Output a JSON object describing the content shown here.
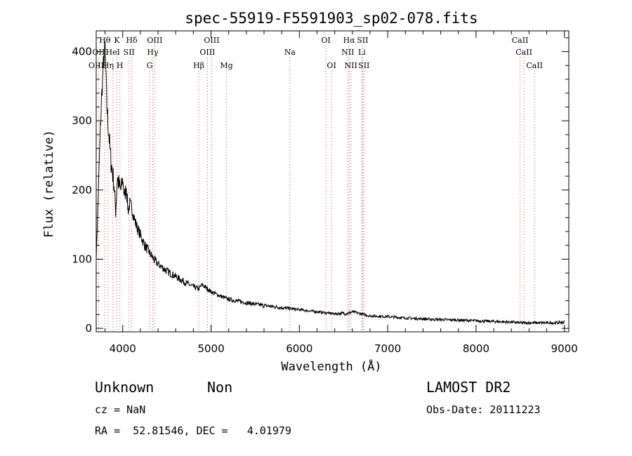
{
  "chart_data": {
    "type": "line",
    "title": "spec-55919-F5591903_sp02-078.fits",
    "xlabel": "Wavelength (Å)",
    "ylabel": "Flux (relative)",
    "xlim": [
      3700,
      9050
    ],
    "ylim": [
      -5,
      430
    ],
    "xticks": [
      4000,
      5000,
      6000,
      7000,
      8000,
      9000
    ],
    "yticks": [
      0,
      100,
      200,
      300,
      400
    ],
    "grid": false,
    "series": [
      {
        "values_x": [
          3700,
          3720,
          3740,
          3760,
          3780,
          3800,
          3815,
          3830,
          3845,
          3860,
          3880,
          3900,
          3920,
          3940,
          3960,
          3980,
          4000,
          4020,
          4040,
          4060,
          4080,
          4100,
          4150,
          4200,
          4250,
          4300,
          4350,
          4400,
          4450,
          4500,
          4600,
          4700,
          4800,
          4860,
          4900,
          5000,
          5100,
          5200,
          5400,
          5600,
          5800,
          6000,
          6200,
          6400,
          6563,
          6600,
          6700,
          6800,
          7000,
          7200,
          7500,
          7800,
          8000,
          8200,
          8400,
          8500,
          8600,
          8700,
          8800,
          8900,
          9000
        ],
        "values_y": [
          100,
          180,
          260,
          330,
          380,
          410,
          340,
          300,
          280,
          250,
          230,
          210,
          170,
          220,
          205,
          200,
          215,
          190,
          205,
          170,
          180,
          175,
          150,
          135,
          120,
          110,
          100,
          93,
          88,
          83,
          75,
          67,
          60,
          57,
          63,
          53,
          47,
          42,
          37,
          33,
          30,
          27,
          24,
          21,
          22,
          24,
          21,
          18,
          17,
          15,
          13,
          12,
          11,
          10,
          9,
          8,
          8,
          8,
          8,
          8,
          9
        ],
        "noise": [
          0,
          10,
          14,
          16,
          14,
          12,
          22,
          18,
          16,
          20,
          18,
          16,
          14,
          18,
          16,
          14,
          12,
          12,
          12,
          10,
          10,
          9,
          9,
          8,
          8,
          7,
          7,
          6,
          6,
          6,
          5,
          5,
          4,
          4,
          4,
          3,
          3,
          3,
          3,
          3,
          3,
          2,
          2,
          2,
          3,
          2,
          2,
          2,
          2,
          2,
          2,
          2,
          2,
          2,
          2,
          2,
          2,
          2,
          2,
          2,
          3
        ]
      }
    ],
    "spectral_lines": [
      {
        "label": "Hθ",
        "wl": 3798,
        "row": 0
      },
      {
        "label": "K",
        "wl": 3934,
        "row": 0
      },
      {
        "label": "Hδ",
        "wl": 4102,
        "row": 0
      },
      {
        "label": "OIII",
        "wl": 4363,
        "row": 0
      },
      {
        "label": "OIII",
        "wl": 5007,
        "row": 0
      },
      {
        "label": "OI",
        "wl": 6300,
        "row": 0
      },
      {
        "label": "Hα",
        "wl": 6563,
        "row": 0
      },
      {
        "label": "SII",
        "wl": 6716,
        "row": 0
      },
      {
        "label": "CaII",
        "wl": 8498,
        "row": 0
      },
      {
        "label": "OII",
        "wl": 3727,
        "row": 1
      },
      {
        "label": "HeI",
        "wl": 3889,
        "row": 1
      },
      {
        "label": "SII",
        "wl": 4072,
        "row": 1
      },
      {
        "label": "Hγ",
        "wl": 4340,
        "row": 1
      },
      {
        "label": "OIII",
        "wl": 4959,
        "row": 1
      },
      {
        "label": "Na",
        "wl": 5893,
        "row": 1
      },
      {
        "label": "NII",
        "wl": 6548,
        "row": 1
      },
      {
        "label": "Li",
        "wl": 6708,
        "row": 1
      },
      {
        "label": "CaII",
        "wl": 8542,
        "row": 1
      },
      {
        "label": "OIII",
        "wl": 3700,
        "row": 2
      },
      {
        "label": "Hη",
        "wl": 3835,
        "row": 2
      },
      {
        "label": "H",
        "wl": 3968,
        "row": 2
      },
      {
        "label": "G",
        "wl": 4305,
        "row": 2
      },
      {
        "label": "Hβ",
        "wl": 4861,
        "row": 2
      },
      {
        "label": "Mg",
        "wl": 5175,
        "row": 2
      },
      {
        "label": "OI",
        "wl": 6364,
        "row": 2
      },
      {
        "label": "NII",
        "wl": 6583,
        "row": 2
      },
      {
        "label": "SII",
        "wl": 6731,
        "row": 2
      },
      {
        "label": "CaII",
        "wl": 8662,
        "row": 2
      }
    ]
  },
  "info": {
    "class_label": "Unknown",
    "subclass_label": "Non",
    "survey": "LAMOST DR2",
    "redshift": "cz = NaN",
    "obs_date": "Obs-Date: 20111223",
    "coords": "RA =  52.81546, DEC =   4.01979"
  }
}
